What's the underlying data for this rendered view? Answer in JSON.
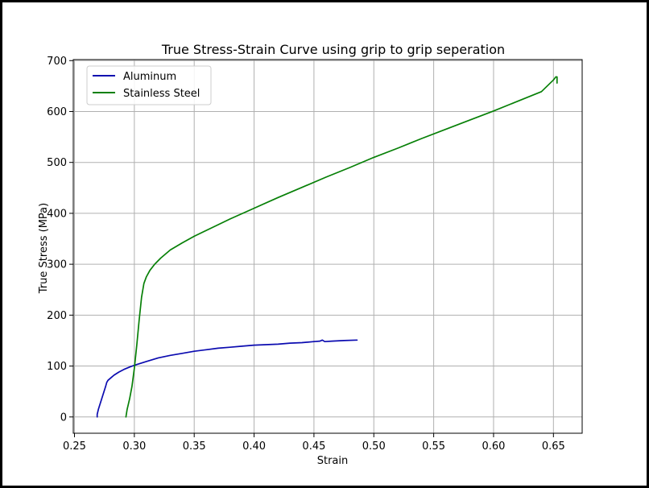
{
  "chart_data": {
    "type": "line",
    "title": "True Stress-Strain Curve using grip to grip seperation",
    "xlabel": "Strain",
    "ylabel": "True Stress (MPa)",
    "xlim": [
      0.249,
      0.674
    ],
    "ylim": [
      -32,
      702
    ],
    "xticks": [
      0.25,
      0.3,
      0.35,
      0.4,
      0.45,
      0.5,
      0.55,
      0.6,
      0.65
    ],
    "xtick_labels": [
      "0.25",
      "0.30",
      "0.35",
      "0.40",
      "0.45",
      "0.50",
      "0.55",
      "0.60",
      "0.65"
    ],
    "yticks": [
      0,
      100,
      200,
      300,
      400,
      500,
      600,
      700
    ],
    "ytick_labels": [
      "0",
      "100",
      "200",
      "300",
      "400",
      "500",
      "600",
      "700"
    ],
    "grid": true,
    "legend_position": "upper-left",
    "series": [
      {
        "name": "Aluminum",
        "color": "#0b0bb0",
        "x": [
          0.269,
          0.269,
          0.27,
          0.272,
          0.274,
          0.276,
          0.277,
          0.278,
          0.28,
          0.283,
          0.287,
          0.292,
          0.297,
          0.302,
          0.31,
          0.32,
          0.33,
          0.34,
          0.35,
          0.36,
          0.37,
          0.38,
          0.39,
          0.4,
          0.41,
          0.42,
          0.43,
          0.44,
          0.45,
          0.455,
          0.457,
          0.459,
          0.465,
          0.475,
          0.486
        ],
        "y": [
          0,
          5,
          15,
          30,
          45,
          60,
          68,
          72,
          76,
          82,
          88,
          94,
          99,
          103,
          109,
          116,
          121,
          125,
          129,
          132,
          135,
          137,
          139,
          141,
          142,
          143,
          145,
          146,
          148,
          149,
          151,
          148,
          149,
          150,
          151
        ]
      },
      {
        "name": "Stainless Steel",
        "color": "#078007",
        "x": [
          0.293,
          0.294,
          0.296,
          0.298,
          0.3,
          0.302,
          0.304,
          0.306,
          0.308,
          0.31,
          0.313,
          0.317,
          0.322,
          0.33,
          0.34,
          0.35,
          0.365,
          0.38,
          0.4,
          0.42,
          0.44,
          0.46,
          0.48,
          0.5,
          0.52,
          0.54,
          0.56,
          0.58,
          0.6,
          0.62,
          0.64,
          0.65,
          0.652,
          0.653,
          0.653
        ],
        "y": [
          0,
          15,
          35,
          60,
          95,
          140,
          190,
          235,
          262,
          275,
          288,
          300,
          312,
          328,
          342,
          355,
          372,
          389,
          410,
          431,
          451,
          471,
          490,
          510,
          528,
          547,
          565,
          583,
          601,
          620,
          639,
          662,
          668,
          668,
          656
        ]
      }
    ]
  }
}
